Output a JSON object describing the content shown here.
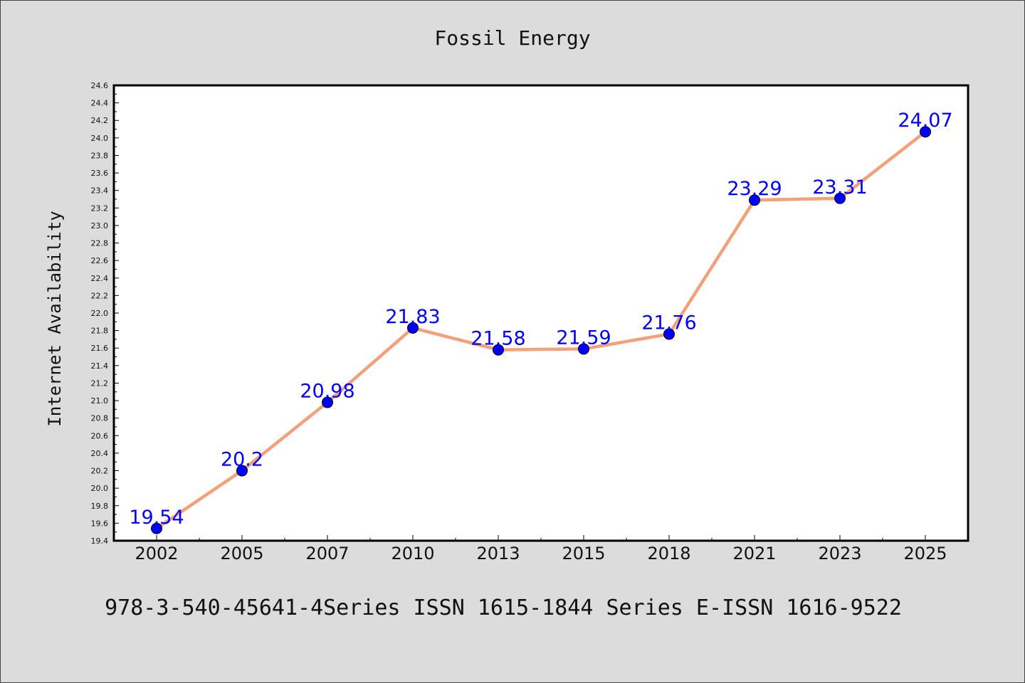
{
  "chart_data": {
    "type": "line",
    "title": "Fossil Energy",
    "xlabel": "",
    "ylabel": "Internet Availability",
    "categories": [
      "2002",
      "2005",
      "2007",
      "2010",
      "2013",
      "2015",
      "2018",
      "2021",
      "2023",
      "2025"
    ],
    "series": [
      {
        "values": [
          19.54,
          20.2,
          20.98,
          21.83,
          21.58,
          21.59,
          21.76,
          23.29,
          23.31,
          24.07
        ],
        "data_labels": [
          "19.54",
          "20.2",
          "20.98",
          "21.83",
          "21.58",
          "21.59",
          "21.76",
          "23.29",
          "23.31",
          "24.07"
        ],
        "line_color": "#f4a07a",
        "marker_color": "#0000ff"
      }
    ],
    "ylim": [
      19.4,
      24.6
    ],
    "y_ticks": [
      "19.4",
      "19.6",
      "19.8",
      "20.0",
      "20.2",
      "20.4",
      "20.6",
      "20.8",
      "21.0",
      "21.2",
      "21.4",
      "21.6",
      "21.8",
      "22.0",
      "22.2",
      "22.4",
      "22.6",
      "22.8",
      "23.0",
      "23.2",
      "23.4",
      "23.6",
      "23.8",
      "24.0",
      "24.2",
      "24.4",
      "24.6"
    ],
    "grid": false,
    "legend": "none",
    "label_color": "#0000ff",
    "background": "#dcdcdc",
    "plot_background": "#ffffff"
  },
  "caption": "978-3-540-45641-4Series ISSN 1615-1844 Series E-ISSN 1616-9522"
}
